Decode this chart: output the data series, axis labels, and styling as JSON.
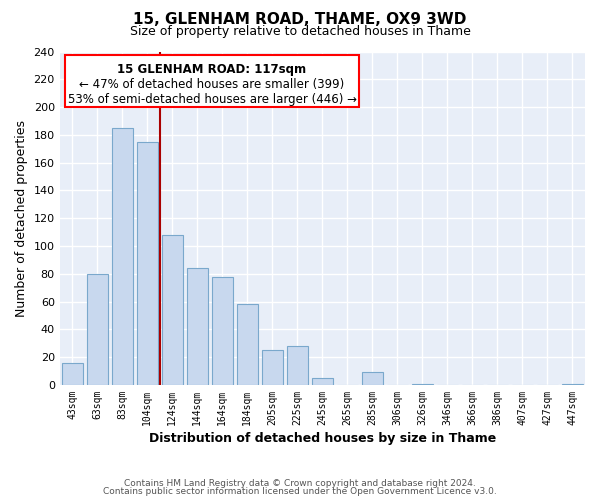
{
  "title": "15, GLENHAM ROAD, THAME, OX9 3WD",
  "subtitle": "Size of property relative to detached houses in Thame",
  "xlabel": "Distribution of detached houses by size in Thame",
  "ylabel": "Number of detached properties",
  "bar_labels": [
    "43sqm",
    "63sqm",
    "83sqm",
    "104sqm",
    "124sqm",
    "144sqm",
    "164sqm",
    "184sqm",
    "205sqm",
    "225sqm",
    "245sqm",
    "265sqm",
    "285sqm",
    "306sqm",
    "326sqm",
    "346sqm",
    "366sqm",
    "386sqm",
    "407sqm",
    "427sqm",
    "447sqm"
  ],
  "bar_values": [
    16,
    80,
    185,
    175,
    108,
    84,
    78,
    58,
    25,
    28,
    5,
    0,
    9,
    0,
    1,
    0,
    0,
    0,
    0,
    0,
    1
  ],
  "bar_color": "#c8d8ee",
  "bar_edge_color": "#7aa8cc",
  "vline_x": 3.5,
  "vline_color": "#aa0000",
  "annotation_title": "15 GLENHAM ROAD: 117sqm",
  "annotation_line1": "← 47% of detached houses are smaller (399)",
  "annotation_line2": "53% of semi-detached houses are larger (446) →",
  "ylim": [
    0,
    240
  ],
  "yticks": [
    0,
    20,
    40,
    60,
    80,
    100,
    120,
    140,
    160,
    180,
    200,
    220,
    240
  ],
  "footer1": "Contains HM Land Registry data © Crown copyright and database right 2024.",
  "footer2": "Contains public sector information licensed under the Open Government Licence v3.0.",
  "bg_color": "#ffffff",
  "plot_bg_color": "#e8eef8",
  "grid_color": "#ffffff"
}
